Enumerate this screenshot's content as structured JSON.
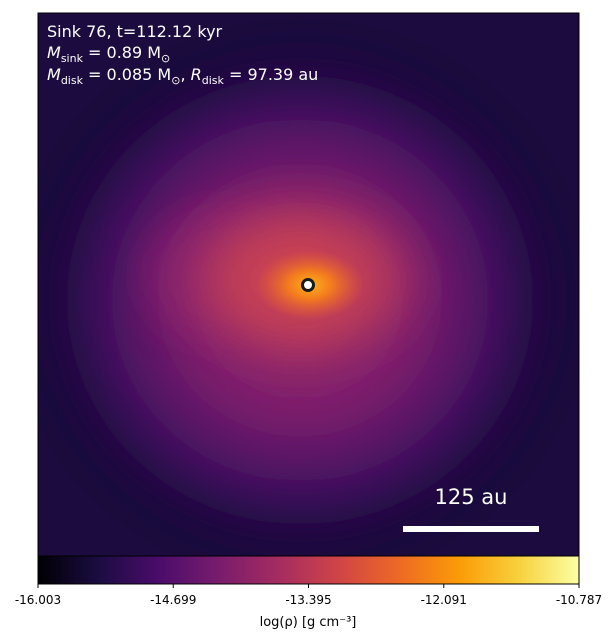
{
  "chart_data": {
    "type": "density-map",
    "annotations": [
      "Sink 76, t=112.12 kyr"
    ],
    "sink_mass": {
      "symbol": "M",
      "sub": "sink",
      "text": " = 0.89 M",
      "unit_sub": "⊙"
    },
    "disk": {
      "symbol": "M",
      "sub": "disk",
      "text": " = 0.085 M",
      "unit_sub": "⊙",
      "sep": ", ",
      "symbol2": "R",
      "sub2": "disk",
      "text2": " = 97.39 au"
    },
    "scale_bar_label": "125 au",
    "colormap": "inferno",
    "colorbar_label": "log(ρ) [g cm⁻³]",
    "clim": [
      -16.003,
      -10.787
    ],
    "cticks": [
      -16.003,
      -14.699,
      -13.395,
      -12.091,
      -10.787
    ]
  }
}
